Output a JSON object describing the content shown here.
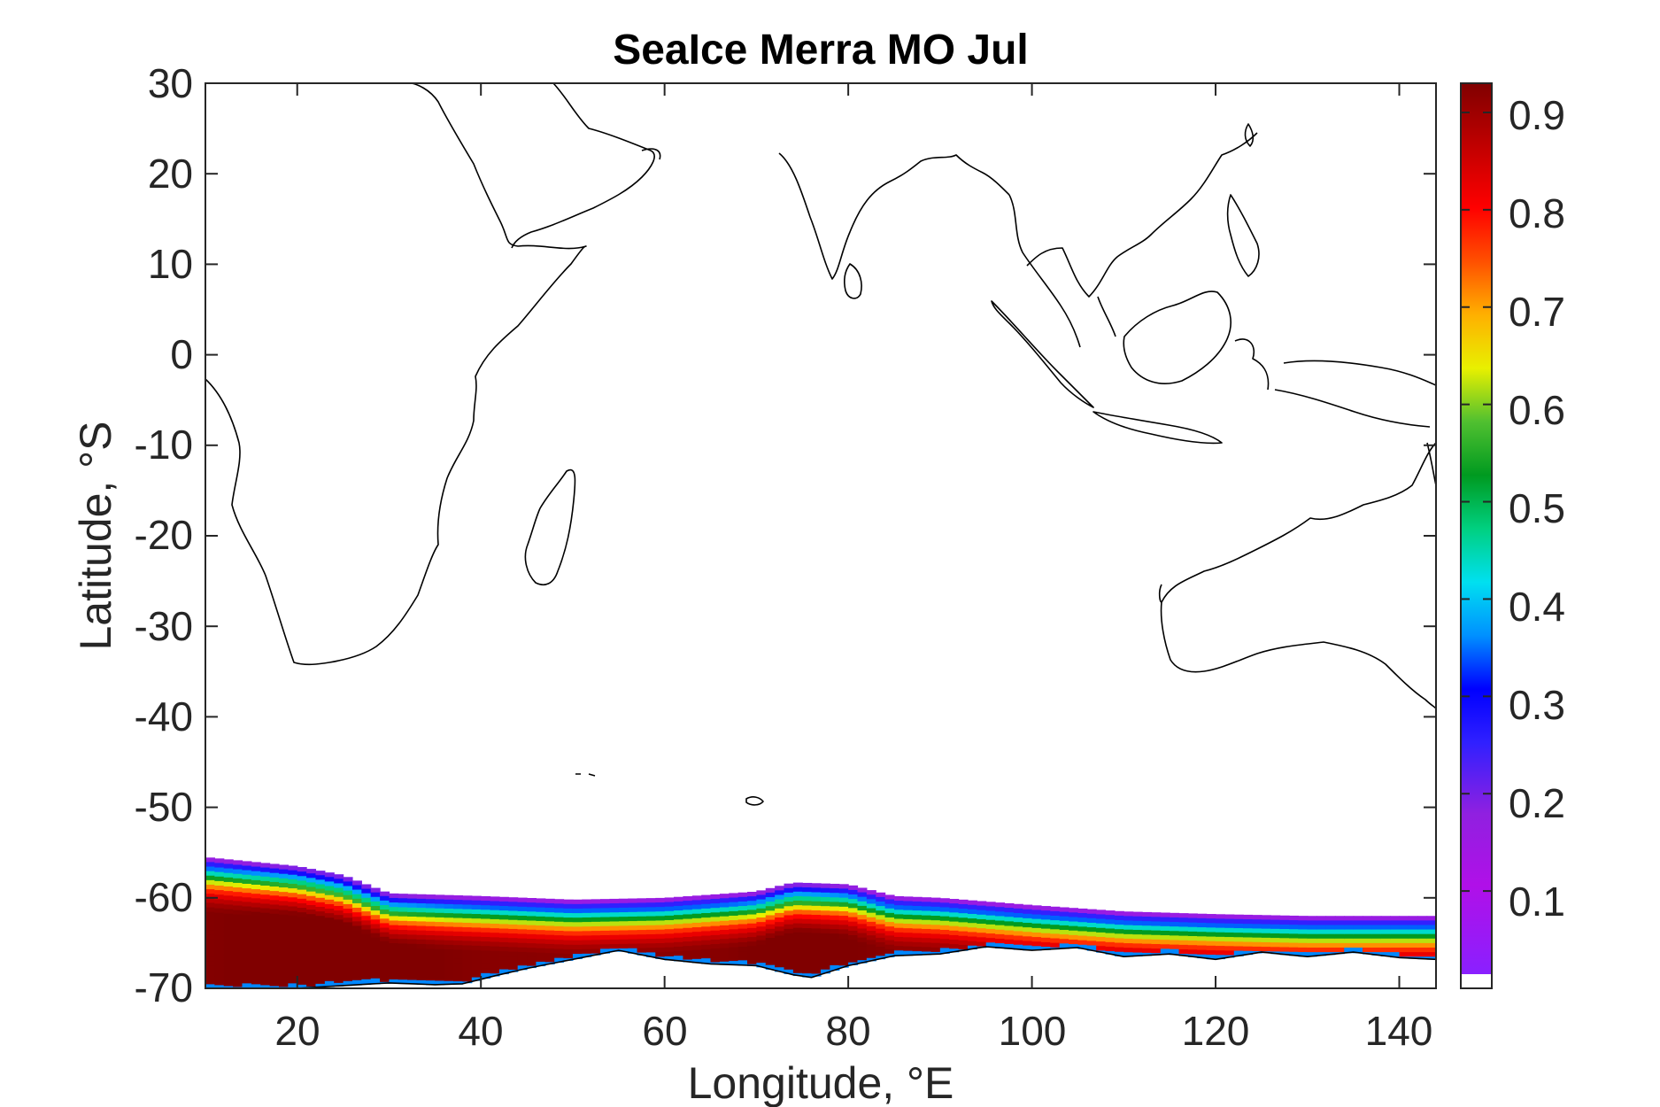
{
  "title": "SeaIce Merra MO Jul",
  "chart_data": {
    "type": "heatmap",
    "title": "SeaIce Merra MO Jul",
    "xlabel": "Longitude, °E",
    "ylabel": "Latitude, °S",
    "xlim": [
      10,
      144
    ],
    "ylim": [
      -70,
      30
    ],
    "xticks": [
      20,
      40,
      60,
      80,
      100,
      120,
      140
    ],
    "yticks": [
      30,
      20,
      10,
      0,
      -10,
      -20,
      -30,
      -40,
      -50,
      -60,
      -70
    ],
    "colorbar": {
      "range": [
        0,
        0.93
      ],
      "ticks": [
        0.1,
        0.2,
        0.3,
        0.4,
        0.5,
        0.6,
        0.7,
        0.8,
        0.9
      ],
      "colormap": "purple-blue-cyan-green-yellow-red-darkred"
    },
    "ice_edge": {
      "lon": [
        10,
        20,
        25,
        30,
        40,
        50,
        60,
        70,
        74,
        80,
        85,
        90,
        100,
        110,
        120,
        130,
        144
      ],
      "outer_lat": [
        -55.5,
        -56.5,
        -57.5,
        -59.5,
        -59.8,
        -60.2,
        -60.0,
        -59.3,
        -58.3,
        -58.5,
        -59.8,
        -60.0,
        -60.8,
        -61.5,
        -61.8,
        -62.0,
        -62.0
      ]
    },
    "continent_coast": {
      "lon": [
        10,
        20,
        30,
        35,
        38,
        40,
        42,
        45,
        50,
        55,
        60,
        65,
        70,
        74,
        76,
        80,
        85,
        90,
        95,
        100,
        105,
        110,
        115,
        120,
        125,
        130,
        135,
        140,
        144
      ],
      "lat": [
        -70,
        -70,
        -69.4,
        -69.6,
        -69.5,
        -69.0,
        -68.5,
        -67.8,
        -66.8,
        -65.8,
        -66.8,
        -67.3,
        -67.5,
        -68.5,
        -68.8,
        -67.5,
        -66.4,
        -66.2,
        -65.4,
        -65.8,
        -65.5,
        -66.5,
        -66.2,
        -66.8,
        -66.0,
        -66.5,
        -66.0,
        -66.6,
        -66.8
      ]
    },
    "concentration_profile": {
      "offsets_from_edge_deg": [
        0,
        0.8,
        1.6,
        2.4,
        3.2,
        4.0,
        5.0,
        6.0
      ],
      "values": [
        0.1,
        0.25,
        0.4,
        0.55,
        0.7,
        0.8,
        0.88,
        0.92
      ]
    }
  }
}
